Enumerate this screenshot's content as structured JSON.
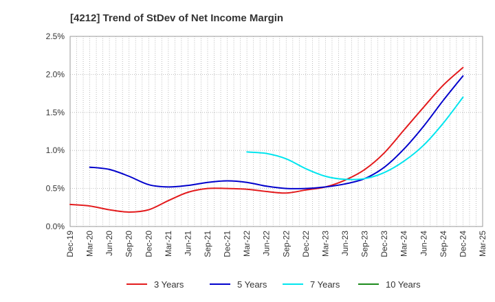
{
  "chart_data": {
    "type": "line",
    "title": "[4212]  Trend of StDev of Net Income Margin",
    "xlabel": "",
    "ylabel": "",
    "x": [
      "Dec-19",
      "Mar-20",
      "Jun-20",
      "Sep-20",
      "Dec-20",
      "Mar-21",
      "Jun-21",
      "Sep-21",
      "Dec-21",
      "Mar-22",
      "Jun-22",
      "Sep-22",
      "Dec-22",
      "Mar-23",
      "Jun-23",
      "Sep-23",
      "Dec-23",
      "Mar-24",
      "Jun-24",
      "Sep-24",
      "Dec-24",
      "Mar-25"
    ],
    "y_ticks": [
      "0.0%",
      "0.5%",
      "1.0%",
      "1.5%",
      "2.0%",
      "2.5%"
    ],
    "ylim": [
      0,
      2.5
    ],
    "y_unit": "%",
    "grid": "dotted",
    "legend_position": "bottom",
    "series": [
      {
        "name": "3 Years",
        "color": "#e31a1c",
        "values": [
          0.29,
          0.27,
          0.22,
          0.19,
          0.22,
          0.34,
          0.45,
          0.5,
          0.5,
          0.49,
          0.46,
          0.44,
          0.48,
          0.52,
          0.61,
          0.75,
          0.97,
          1.27,
          1.57,
          1.86,
          2.09,
          null
        ]
      },
      {
        "name": "5 Years",
        "color": "#0000cc",
        "values": [
          null,
          0.78,
          0.75,
          0.66,
          0.55,
          0.52,
          0.54,
          0.58,
          0.6,
          0.58,
          0.53,
          0.5,
          0.5,
          0.52,
          0.56,
          0.63,
          0.78,
          1.02,
          1.32,
          1.66,
          1.98,
          null
        ]
      },
      {
        "name": "7 Years",
        "color": "#00e5ee",
        "values": [
          null,
          null,
          null,
          null,
          null,
          null,
          null,
          null,
          null,
          0.98,
          0.96,
          0.89,
          0.76,
          0.66,
          0.62,
          0.63,
          0.71,
          0.86,
          1.07,
          1.36,
          1.7,
          null
        ]
      },
      {
        "name": "10 Years",
        "color": "#1a8a1a",
        "values": [
          null,
          null,
          null,
          null,
          null,
          null,
          null,
          null,
          null,
          null,
          null,
          null,
          null,
          null,
          null,
          null,
          null,
          null,
          null,
          null,
          null,
          null
        ]
      }
    ]
  }
}
